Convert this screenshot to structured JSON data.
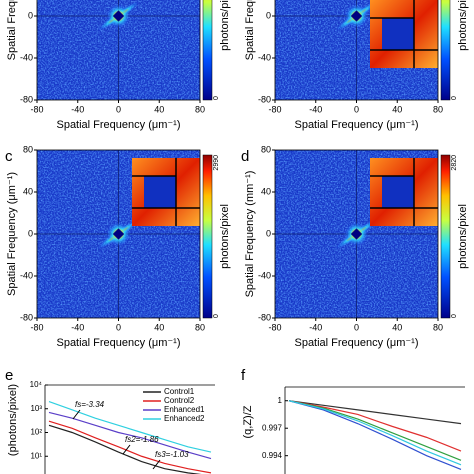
{
  "chart_data": [
    {
      "type": "heatmap",
      "xlabel": "Spatial Frequency (μm⁻¹)",
      "ylabel": "Spatial Frequency",
      "xlim": [
        -80,
        80
      ],
      "ylim": [
        -80,
        80
      ],
      "xticks": [
        -80,
        -40,
        0,
        40,
        80
      ],
      "yticks": [
        -80,
        -40,
        0
      ],
      "colorbar": {
        "label": "photons/pixel",
        "ticks": [
          0
        ]
      },
      "inset": false
    },
    {
      "type": "heatmap",
      "xlabel": "Spatial Frequency (μm⁻¹)",
      "ylabel": "Spatial Frequency",
      "xlim": [
        -80,
        80
      ],
      "ylim": [
        -80,
        80
      ],
      "xticks": [
        -80,
        -40,
        0,
        40,
        80
      ],
      "yticks": [
        -80,
        -40,
        0
      ],
      "colorbar": {
        "label": "photons/pixel",
        "ticks": [
          0
        ]
      },
      "inset": true
    },
    {
      "type": "heatmap",
      "panel": "c",
      "xlabel": "Spatial Frequency (μm⁻¹)",
      "ylabel": "Spatial Frequency (μm⁻¹)",
      "xlim": [
        -80,
        80
      ],
      "ylim": [
        -80,
        80
      ],
      "xticks": [
        -80,
        -40,
        0,
        40,
        80
      ],
      "yticks": [
        -80,
        -40,
        0,
        40,
        80
      ],
      "colorbar": {
        "label": "photons/pixel",
        "ticks": [
          0,
          2990
        ]
      },
      "inset": true
    },
    {
      "type": "heatmap",
      "panel": "d",
      "xlabel": "Spatial Frequency (μm⁻¹)",
      "ylabel": "Spatial Frequency (mm⁻¹)",
      "xlim": [
        -80,
        80
      ],
      "ylim": [
        -80,
        80
      ],
      "xticks": [
        -80,
        -40,
        0,
        40,
        80
      ],
      "yticks": [
        -80,
        -40,
        0,
        40,
        80
      ],
      "colorbar": {
        "label": "photons/pixel",
        "ticks": [
          0,
          2820
        ]
      },
      "inset": true
    },
    {
      "type": "line",
      "panel": "e",
      "ylabel": "(photons/pixel)",
      "log_y": true,
      "ylim": [
        1,
        10000
      ],
      "yticks": [
        {
          "value": 10,
          "label": "10¹"
        },
        {
          "value": 100,
          "label": "10²"
        },
        {
          "value": 1000,
          "label": "10³"
        },
        {
          "value": 10000,
          "label": "10⁴"
        }
      ],
      "series": [
        {
          "name": "Control1",
          "color": "#222222",
          "values": [
            200,
            100,
            40,
            15,
            6,
            3,
            2,
            1.5
          ]
        },
        {
          "name": "Control2",
          "color": "#e02020",
          "values": [
            300,
            150,
            60,
            25,
            10,
            5,
            3,
            2
          ]
        },
        {
          "name": "Enhanced1",
          "color": "#5a3ec8",
          "values": [
            700,
            400,
            200,
            100,
            60,
            30,
            15,
            8
          ]
        },
        {
          "name": "Enhanced2",
          "color": "#30d0e0",
          "values": [
            2000,
            900,
            400,
            200,
            100,
            50,
            25,
            15
          ]
        }
      ],
      "annotations": [
        "fs=-3.34",
        "fs2=-1.86",
        "fs3=-1.03"
      ]
    },
    {
      "type": "line",
      "panel": "f",
      "ylabel": "(q,Z)/Z",
      "ylim": [
        0.992,
        1.0015
      ],
      "yticks": [
        1,
        0.997,
        0.994
      ],
      "series": [
        {
          "color": "#333333",
          "values": [
            1,
            0.9995,
            0.999,
            0.9985,
            0.998,
            0.9975
          ]
        },
        {
          "color": "#e03030",
          "values": [
            1,
            0.9993,
            0.9985,
            0.9972,
            0.996,
            0.9945
          ]
        },
        {
          "color": "#30a040",
          "values": [
            1,
            0.9992,
            0.998,
            0.9965,
            0.995,
            0.9935
          ]
        },
        {
          "color": "#3050d0",
          "values": [
            1,
            0.999,
            0.9975,
            0.9958,
            0.994,
            0.9925
          ]
        },
        {
          "color": "#30c8e0",
          "values": [
            1,
            0.9991,
            0.9978,
            0.9962,
            0.9945,
            0.993
          ]
        }
      ]
    }
  ]
}
